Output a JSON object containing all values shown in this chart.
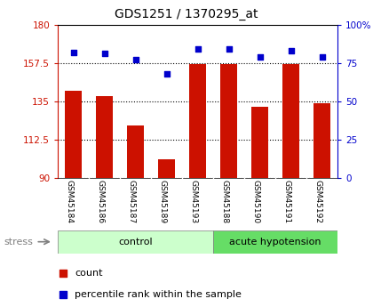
{
  "title": "GDS1251 / 1370295_at",
  "categories": [
    "GSM45184",
    "GSM45186",
    "GSM45187",
    "GSM45189",
    "GSM45193",
    "GSM45188",
    "GSM45190",
    "GSM45191",
    "GSM45192"
  ],
  "bar_values": [
    141,
    138,
    121,
    101,
    157,
    157,
    132,
    157,
    134
  ],
  "dot_values_pct": [
    82,
    81,
    77,
    68,
    84,
    84,
    79,
    83,
    79
  ],
  "ylim_left": [
    90,
    180
  ],
  "ylim_right": [
    0,
    100
  ],
  "yticks_left": [
    90,
    112.5,
    135,
    157.5,
    180
  ],
  "ytick_labels_left": [
    "90",
    "112.5",
    "135",
    "157.5",
    "180"
  ],
  "yticks_right": [
    0,
    25,
    50,
    75,
    100
  ],
  "ytick_labels_right": [
    "0",
    "25",
    "50",
    "75",
    "100%"
  ],
  "bar_color": "#cc1100",
  "dot_color": "#0000cc",
  "control_indices": [
    0,
    1,
    2,
    3,
    4
  ],
  "acute_indices": [
    5,
    6,
    7,
    8
  ],
  "control_label": "control",
  "acute_label": "acute hypotension",
  "stress_label": "stress",
  "legend_bar": "count",
  "legend_dot": "percentile rank within the sample",
  "control_color": "#ccffcc",
  "acute_color": "#66dd66",
  "label_bg_color": "#d0d0d0",
  "xlabel_color_left": "#cc1100",
  "xlabel_color_right": "#0000cc",
  "title_fontsize": 10,
  "tick_fontsize": 7.5,
  "label_fontsize": 6.5,
  "group_fontsize": 8,
  "legend_fontsize": 8,
  "stress_fontsize": 8
}
